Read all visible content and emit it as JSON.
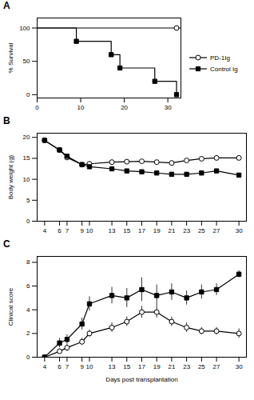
{
  "chart_data": [
    {
      "type": "line",
      "title": "A",
      "ylabel": "% Survival",
      "xlim": [
        0,
        33
      ],
      "xticks": [
        0,
        10,
        20,
        30
      ],
      "ylim": [
        -5,
        115
      ],
      "yticks": [
        0,
        50,
        100
      ],
      "legend": "right",
      "series": [
        {
          "name": "PD-1Ig",
          "color": "#000000",
          "marker": "open_circle",
          "x": [
            0,
            33
          ],
          "values": [
            100,
            100
          ],
          "markers": {
            "x": [
              32
            ],
            "values": [
              100
            ]
          }
        },
        {
          "name": "Control Ig",
          "color": "#000000",
          "marker": "square",
          "x": [
            0,
            9,
            9,
            17,
            17,
            19,
            19,
            27,
            27,
            32,
            32
          ],
          "values": [
            100,
            100,
            80,
            80,
            60,
            60,
            40,
            40,
            20,
            20,
            0
          ],
          "markers": {
            "x": [
              9,
              17,
              19,
              27,
              32
            ],
            "values": [
              80,
              60,
              40,
              20,
              0
            ]
          }
        }
      ]
    },
    {
      "type": "line",
      "title": "B",
      "ylabel": "Body weight (g)",
      "x": [
        4,
        6,
        7,
        9,
        10,
        13,
        15,
        17,
        19,
        21,
        23,
        25,
        27,
        30
      ],
      "xlim": [
        3,
        31
      ],
      "xticks": [
        4,
        6,
        7,
        9,
        10,
        13,
        15,
        17,
        19,
        21,
        23,
        25,
        27,
        30
      ],
      "ylim": [
        0,
        21
      ],
      "yticks": [
        0,
        5,
        10,
        15,
        20
      ],
      "series": [
        {
          "name": "PD-1Ig",
          "color": "#000000",
          "marker": "open_circle",
          "values": [
            19.3,
            17.0,
            15.2,
            13.5,
            13.7,
            14.1,
            14.2,
            14.3,
            14.1,
            13.9,
            14.5,
            14.9,
            15.1,
            15.1
          ],
          "errors": [
            0.0,
            0.3,
            0.3,
            0.3,
            0.3,
            0.3,
            0.3,
            0.3,
            0.3,
            0.3,
            0.4,
            0.4,
            0.4,
            0.4
          ]
        },
        {
          "name": "Control Ig",
          "color": "#000000",
          "marker": "square",
          "values": [
            19.3,
            17.0,
            15.5,
            13.5,
            13.0,
            12.5,
            12.0,
            11.8,
            11.5,
            11.2,
            11.2,
            11.5,
            12.0,
            11.0
          ],
          "errors": [
            0.0,
            0.3,
            0.3,
            0.3,
            0.3,
            0.3,
            0.3,
            0.3,
            0.3,
            0.3,
            0.2,
            0.5,
            0.3,
            0.3
          ]
        }
      ]
    },
    {
      "type": "line",
      "title": "C",
      "ylabel": "Clinical score",
      "xlabel": "Days post transplantation",
      "x": [
        4,
        6,
        7,
        9,
        10,
        13,
        15,
        17,
        19,
        21,
        23,
        25,
        27,
        30
      ],
      "xlim": [
        3,
        31
      ],
      "xticks": [
        4,
        6,
        7,
        9,
        10,
        13,
        15,
        17,
        19,
        21,
        23,
        25,
        27,
        30
      ],
      "ylim": [
        0,
        8.5
      ],
      "yticks": [
        0,
        2,
        4,
        6,
        8
      ],
      "series": [
        {
          "name": "PD-1Ig",
          "color": "#000000",
          "marker": "open_circle",
          "values": [
            0.0,
            0.5,
            0.8,
            1.3,
            2.0,
            2.5,
            3.0,
            3.8,
            3.8,
            3.0,
            2.5,
            2.2,
            2.2,
            2.0
          ],
          "errors": [
            0.0,
            0.2,
            0.3,
            0.3,
            0.3,
            0.4,
            0.4,
            0.5,
            0.5,
            0.4,
            0.4,
            0.3,
            0.3,
            0.4
          ]
        },
        {
          "name": "Control Ig",
          "color": "#000000",
          "marker": "square",
          "values": [
            0.0,
            1.2,
            1.5,
            2.8,
            4.5,
            5.2,
            5.0,
            5.7,
            5.2,
            5.5,
            5.0,
            5.5,
            5.7,
            7.0
          ],
          "errors": [
            0.0,
            0.4,
            0.4,
            0.5,
            0.6,
            0.7,
            0.8,
            1.0,
            0.9,
            0.7,
            0.6,
            0.6,
            0.5,
            0.3
          ]
        }
      ]
    }
  ]
}
